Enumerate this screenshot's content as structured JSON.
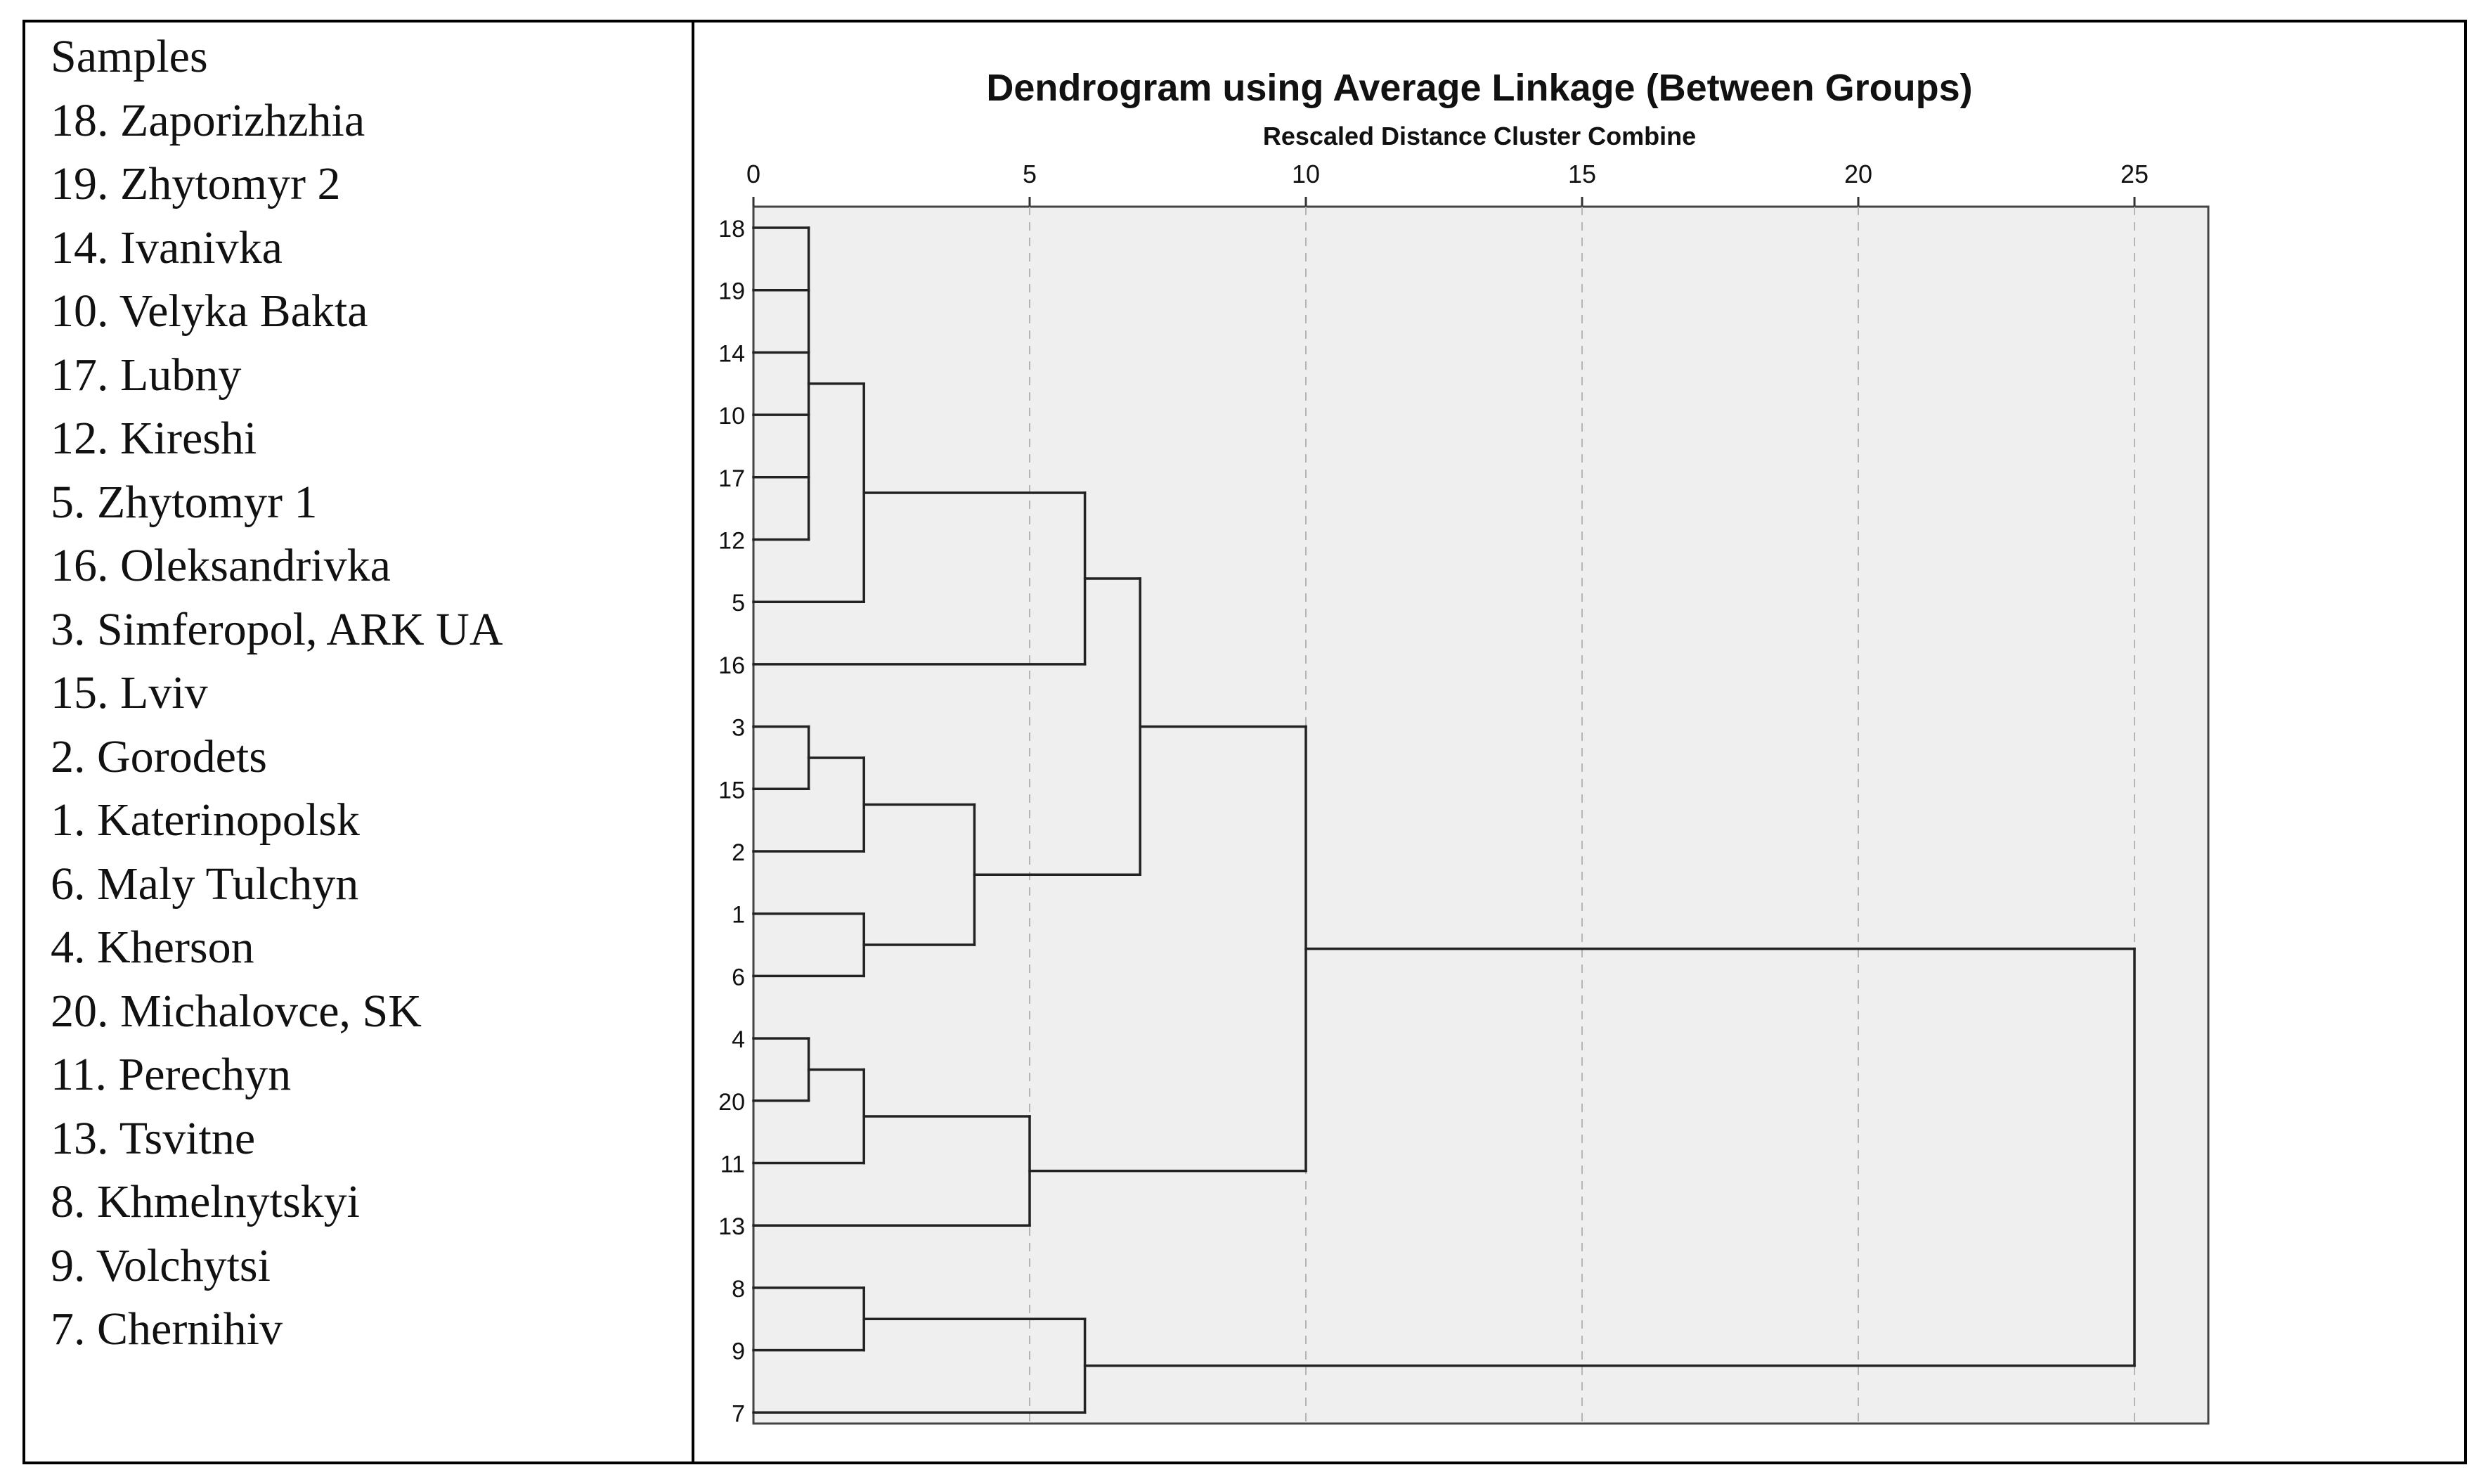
{
  "samples_panel": {
    "heading": "Samples",
    "items": [
      "18. Zaporizhzhia",
      "19. Zhytomyr 2",
      "14. Ivanivka",
      "10. Velyka Bakta",
      "17. Lubny",
      "12. Kireshi",
      "5. Zhytomyr 1",
      "16. Oleksandrivka",
      "3. Simferopol, ARK UA",
      "15. Lviv",
      "2. Gorodets",
      "1. Katerinopolsk",
      "6. Maly Tulchyn",
      "4. Kherson",
      "20. Michalovce, SK",
      "11. Perechyn",
      "13. Tsvitne",
      "8. Khmelnytskyi",
      "9. Volchytsi",
      "7. Chernihiv"
    ]
  },
  "chart_data": {
    "type": "dendrogram",
    "title": "Dendrogram using Average Linkage (Between Groups)",
    "subtitle": "Rescaled Distance Cluster Combine",
    "xlim": [
      0,
      25
    ],
    "x_ticks": [
      0,
      5,
      10,
      15,
      20,
      25
    ],
    "grid": "dashed vertical lines at x ticks",
    "plot_background": "#efefef",
    "leaves": [
      "18",
      "19",
      "14",
      "10",
      "17",
      "12",
      "5",
      "16",
      "3",
      "15",
      "2",
      "1",
      "6",
      "4",
      "20",
      "11",
      "13",
      "8",
      "9",
      "7"
    ],
    "merges": [
      {
        "children": [
          "18",
          "19",
          "14",
          "10",
          "17",
          "12"
        ],
        "height": 1
      },
      {
        "children": [
          "3",
          "15"
        ],
        "height": 1
      },
      {
        "children": [
          "4",
          "20"
        ],
        "height": 1
      },
      {
        "children": [
          [
            "18",
            "19",
            "14",
            "10",
            "17",
            "12"
          ],
          "5"
        ],
        "height": 2
      },
      {
        "children": [
          [
            "3",
            "15"
          ],
          "2"
        ],
        "height": 2
      },
      {
        "children": [
          "1",
          "6"
        ],
        "height": 2
      },
      {
        "children": [
          [
            "4",
            "20"
          ],
          "11"
        ],
        "height": 2
      },
      {
        "children": [
          "8",
          "9"
        ],
        "height": 2
      },
      {
        "children": [
          [
            "3",
            "15",
            "2"
          ],
          [
            "1",
            "6"
          ]
        ],
        "height": 4
      },
      {
        "children": [
          [
            "4",
            "20",
            "11"
          ],
          "13"
        ],
        "height": 5
      },
      {
        "children": [
          [
            "18",
            "19",
            "14",
            "10",
            "17",
            "12",
            "5"
          ],
          "16"
        ],
        "height": 6
      },
      {
        "children": [
          [
            "8",
            "9"
          ],
          "7"
        ],
        "height": 6
      },
      {
        "children": [
          [
            "18",
            "19",
            "14",
            "10",
            "17",
            "12",
            "5",
            "16"
          ],
          [
            "3",
            "15",
            "2",
            "1",
            "6"
          ]
        ],
        "height": 7
      },
      {
        "children": [
          [
            "18",
            "19",
            "14",
            "10",
            "17",
            "12",
            "5",
            "16",
            "3",
            "15",
            "2",
            "1",
            "6"
          ],
          [
            "4",
            "20",
            "11",
            "13"
          ]
        ],
        "height": 10
      },
      {
        "children": [
          [
            "18",
            "19",
            "14",
            "10",
            "17",
            "12",
            "5",
            "16",
            "3",
            "15",
            "2",
            "1",
            "6",
            "4",
            "20",
            "11",
            "13"
          ],
          [
            "8",
            "9",
            "7"
          ]
        ],
        "height": 25
      }
    ]
  }
}
